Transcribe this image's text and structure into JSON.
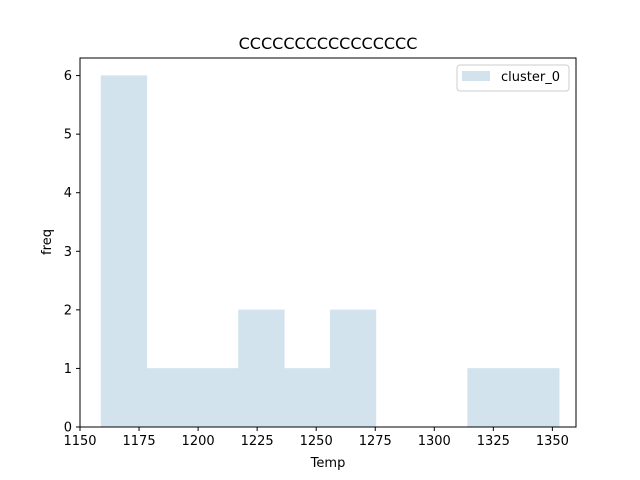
{
  "chart_data": {
    "type": "bar",
    "title": "CCCCCCCCCCCCCCCC",
    "xlabel": "Temp",
    "ylabel": "freq",
    "xlim": [
      1150,
      1360
    ],
    "ylim": [
      0,
      6.3
    ],
    "xticks": [
      1150,
      1175,
      1200,
      1225,
      1250,
      1275,
      1300,
      1325,
      1350
    ],
    "yticks": [
      0,
      1,
      2,
      3,
      4,
      5,
      6
    ],
    "grid": false,
    "legend_position": "top-right",
    "series": [
      {
        "name": "cluster_0",
        "color": "#d2e3ee",
        "bins": [
          {
            "x0": 1158.9,
            "x1": 1178.3,
            "count": 6
          },
          {
            "x0": 1178.3,
            "x1": 1197.7,
            "count": 1
          },
          {
            "x0": 1197.7,
            "x1": 1217.1,
            "count": 1
          },
          {
            "x0": 1217.1,
            "x1": 1236.5,
            "count": 2
          },
          {
            "x0": 1236.5,
            "x1": 1255.9,
            "count": 1
          },
          {
            "x0": 1255.9,
            "x1": 1275.3,
            "count": 2
          },
          {
            "x0": 1275.3,
            "x1": 1294.7,
            "count": 0
          },
          {
            "x0": 1294.7,
            "x1": 1314.1,
            "count": 0
          },
          {
            "x0": 1314.1,
            "x1": 1333.5,
            "count": 1
          },
          {
            "x0": 1333.5,
            "x1": 1352.9,
            "count": 1
          }
        ]
      }
    ]
  }
}
